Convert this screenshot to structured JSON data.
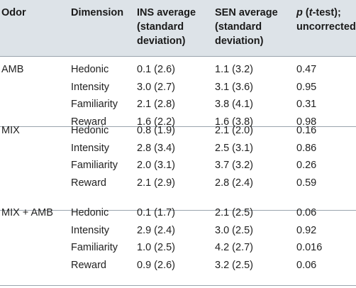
{
  "headers": {
    "odor": "Odor",
    "dimension": "Dimension",
    "ins": "INS average\n(standard\ndeviation)",
    "sen": "SEN average\n(standard\ndeviation)",
    "p": "p (t-test);\nuncorrected"
  },
  "groups": [
    {
      "odor": "AMB",
      "rows": [
        {
          "dim": "Hedonic",
          "ins": "0.1 (2.6)",
          "sen": "1.1 (3.2)",
          "p": "0.47"
        },
        {
          "dim": "Intensity",
          "ins": "3.0 (2.7)",
          "sen": "3.1 (3.6)",
          "p": "0.95"
        },
        {
          "dim": "Familiarity",
          "ins": "2.1 (2.8)",
          "sen": "3.8 (4.1)",
          "p": "0.31"
        },
        {
          "dim": "Reward",
          "ins": "1.6 (2.2)",
          "sen": "1.6 (3.8)",
          "p": "0.98"
        }
      ]
    },
    {
      "odor": "MIX",
      "rows": [
        {
          "dim": "Hedonic",
          "ins": "0.8 (1.9)",
          "sen": "2.1 (2.0)",
          "p": "0.16"
        },
        {
          "dim": "Intensity",
          "ins": "2.8 (3.4)",
          "sen": "2.5 (3.1)",
          "p": "0.86"
        },
        {
          "dim": "Familiarity",
          "ins": "2.0 (3.1)",
          "sen": "3.7 (3.2)",
          "p": "0.26"
        },
        {
          "dim": "Reward",
          "ins": "2.1 (2.9)",
          "sen": "2.8 (2.4)",
          "p": "0.59"
        }
      ]
    },
    {
      "odor": "MIX + AMB",
      "rows": [
        {
          "dim": "Hedonic",
          "ins": "0.1 (1.7)",
          "sen": "2.1 (2.5)",
          "p": "0.06"
        },
        {
          "dim": "Intensity",
          "ins": "2.9 (2.4)",
          "sen": "3.0 (2.5)",
          "p": "0.92"
        },
        {
          "dim": "Familiarity",
          "ins": "1.0 (2.5)",
          "sen": "4.2 (2.7)",
          "p": "0.016"
        },
        {
          "dim": "Reward",
          "ins": "0.9 (2.6)",
          "sen": "3.2 (2.5)",
          "p": "0.06"
        }
      ]
    }
  ]
}
